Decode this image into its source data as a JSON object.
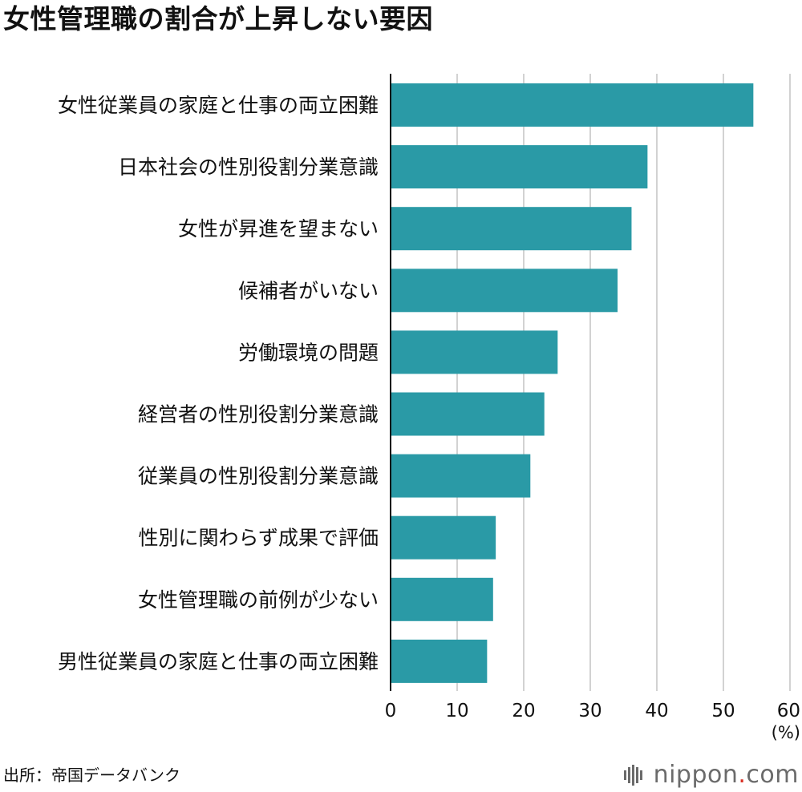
{
  "chart_data": {
    "type": "bar",
    "orientation": "horizontal",
    "title": "女性管理職の割合が上昇しない要因",
    "categories": [
      "女性従業員の家庭と仕事の両立困難",
      "日本社会の性別役割分業意識",
      "女性が昇進を望まない",
      "候補者がいない",
      "労働環境の問題",
      "経営者の性別役割分業意識",
      "従業員の性別役割分業意識",
      "性別に関わらず成果で評価",
      "女性管理職の前例が少ない",
      "男性従業員の家庭と仕事の両立困難"
    ],
    "values": [
      54.5,
      38.6,
      36.2,
      34.1,
      25.1,
      23.1,
      21.0,
      15.8,
      15.4,
      14.5
    ],
    "xticks": [
      "0",
      "10",
      "20",
      "30",
      "40",
      "50",
      "60"
    ],
    "xlim": [
      0,
      60
    ],
    "unit_label": "(%)",
    "bar_color": "#2a9aa6",
    "grid_color": "#c4c4c4",
    "grid": true
  },
  "footer": {
    "source": "出所：帝国データバンク",
    "logo_name": "nippon",
    "logo_dot": ".",
    "logo_tld": "com",
    "logo_color": "#6b6b6b",
    "logo_dot_color": "#d93025"
  }
}
